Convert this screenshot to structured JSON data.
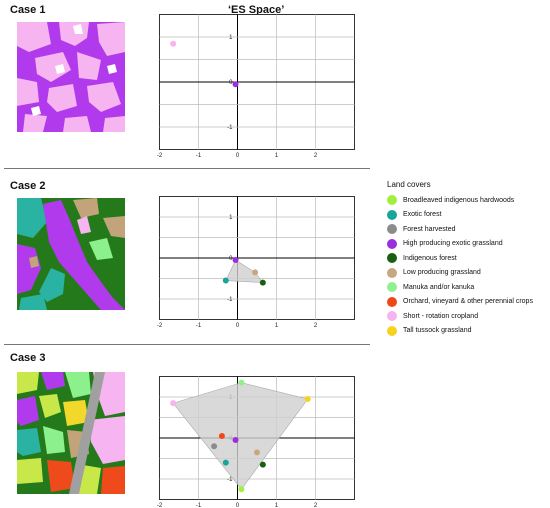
{
  "title": "‘ES Space’",
  "cases": [
    {
      "label": "Case 1",
      "chart_data": {
        "type": "scatter",
        "xlim": [
          -2,
          3
        ],
        "ylim": [
          -1.5,
          1.5
        ],
        "xticks": [
          "-2",
          "-1",
          "0",
          "1",
          "2"
        ],
        "yticks": [
          "1",
          "0",
          "-1"
        ],
        "points": [
          {
            "cover": "Short - rotation cropland",
            "x": -1.65,
            "y": 0.85
          },
          {
            "cover": "High producing exotic grassland",
            "x": -0.05,
            "y": -0.05
          }
        ],
        "hull": []
      }
    },
    {
      "label": "Case 2",
      "chart_data": {
        "type": "scatter",
        "xlim": [
          -2,
          3
        ],
        "ylim": [
          -1.5,
          1.5
        ],
        "xticks": [
          "-2",
          "-1",
          "0",
          "1",
          "2"
        ],
        "yticks": [
          "1",
          "0",
          "-1"
        ],
        "points": [
          {
            "cover": "High producing exotic grassland",
            "x": -0.05,
            "y": -0.05
          },
          {
            "cover": "Low producing grassland",
            "x": 0.45,
            "y": -0.35
          },
          {
            "cover": "Exotic forest",
            "x": -0.3,
            "y": -0.55
          },
          {
            "cover": "Indigenous forest",
            "x": 0.65,
            "y": -0.6
          }
        ],
        "hull": [
          [
            -0.05,
            -0.05
          ],
          [
            0.45,
            -0.35
          ],
          [
            0.65,
            -0.6
          ],
          [
            -0.3,
            -0.55
          ]
        ]
      }
    },
    {
      "label": "Case 3",
      "chart_data": {
        "type": "scatter",
        "xlim": [
          -2,
          3
        ],
        "ylim": [
          -1.5,
          1.5
        ],
        "xticks": [
          "-2",
          "-1",
          "0",
          "1",
          "2"
        ],
        "yticks": [
          "1",
          "0",
          "-1"
        ],
        "points": [
          {
            "cover": "Manuka and/or kanuka",
            "x": 0.1,
            "y": 1.35
          },
          {
            "cover": "Short - rotation cropland",
            "x": -1.65,
            "y": 0.85
          },
          {
            "cover": "Tall tussock grassland",
            "x": 1.8,
            "y": 0.95
          },
          {
            "cover": "Orchard, vineyard & other perennial crops",
            "x": -0.4,
            "y": 0.05
          },
          {
            "cover": "High producing exotic grassland",
            "x": -0.05,
            "y": -0.05
          },
          {
            "cover": "Forest harvested",
            "x": -0.6,
            "y": -0.2
          },
          {
            "cover": "Low producing grassland",
            "x": 0.5,
            "y": -0.35
          },
          {
            "cover": "Exotic forest",
            "x": -0.3,
            "y": -0.6
          },
          {
            "cover": "Indigenous forest",
            "x": 0.65,
            "y": -0.65
          },
          {
            "cover": "Broadleaved indigenous hardwoods",
            "x": 0.1,
            "y": -1.25
          }
        ],
        "hull": [
          [
            0.1,
            1.35
          ],
          [
            1.8,
            0.95
          ],
          [
            0.1,
            -1.25
          ],
          [
            -1.65,
            0.85
          ]
        ]
      }
    }
  ],
  "legend": {
    "title": "Land covers",
    "items": [
      {
        "label": "Broadleaved indigenous hardwoods",
        "color": "#a4ef3c"
      },
      {
        "label": "Exotic forest",
        "color": "#1aa59a"
      },
      {
        "label": "Forest harvested",
        "color": "#8c8c8c"
      },
      {
        "label": "High producing exotic grassland",
        "color": "#9b2fe0"
      },
      {
        "label": "Indigenous forest",
        "color": "#1a5e12"
      },
      {
        "label": "Low producing grassland",
        "color": "#c8a77e"
      },
      {
        "label": "Manuka and/or kanuka",
        "color": "#8ef08e"
      },
      {
        "label": "Orchard, vineyard & other perennial crops",
        "color": "#f0471a"
      },
      {
        "label": "Short - rotation cropland",
        "color": "#f7b3ef"
      },
      {
        "label": "Tall tussock grassland",
        "color": "#f7d21e"
      }
    ]
  },
  "map_colors": {
    "purple": "#b13aed",
    "pink": "#f6b4f0",
    "green": "#247a1a",
    "tan": "#c2a37a",
    "teal": "#2ab3a2",
    "lightgreen": "#8cf08c",
    "yellowgreen": "#c8e84a",
    "orange": "#ef4a1c",
    "gray": "#a0a0a0",
    "yellow": "#f1d82a"
  }
}
